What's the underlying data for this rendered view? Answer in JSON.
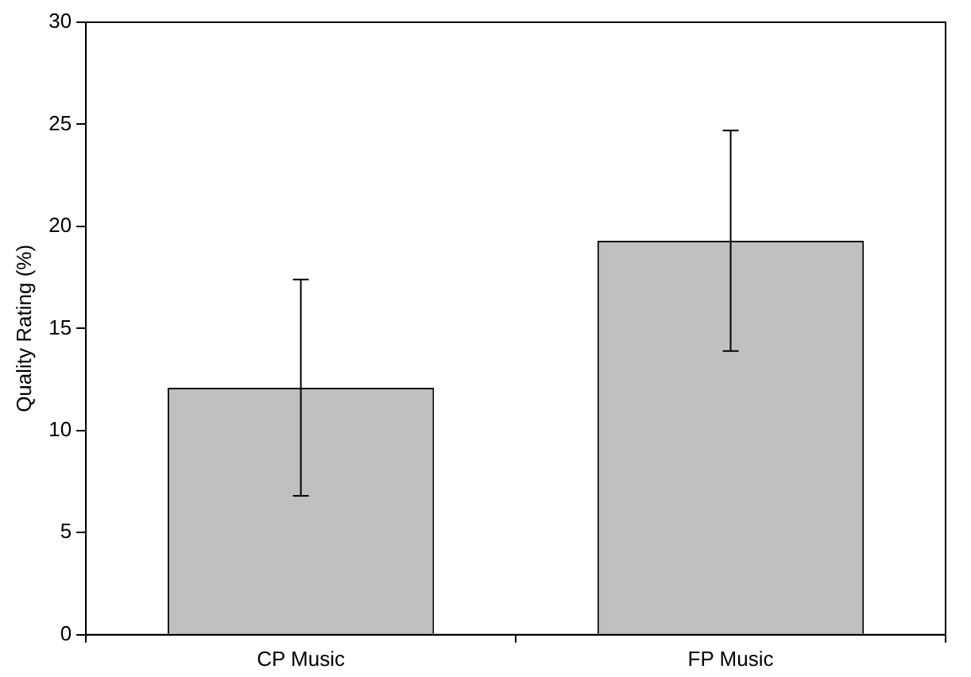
{
  "chart_data": {
    "type": "bar",
    "ylabel": "Quality Rating (%)",
    "categories": [
      "CP Music",
      "FP Music"
    ],
    "values": [
      12.1,
      19.3
    ],
    "errors": [
      5.3,
      5.4
    ],
    "color": "#c0c0c0",
    "ylim": [
      0,
      30
    ],
    "yticks": [
      0,
      5,
      10,
      15,
      20,
      25,
      30
    ],
    "grid": false,
    "legend": false
  }
}
